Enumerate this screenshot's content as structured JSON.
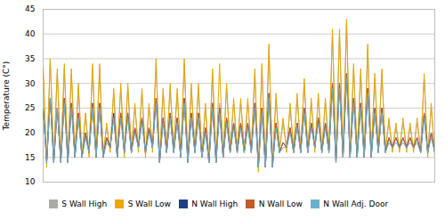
{
  "chart_data": {
    "type": "line",
    "y_label": "Temperature (C°)",
    "ylim": [
      10,
      45
    ],
    "yticks": [
      10,
      15,
      20,
      25,
      30,
      35,
      40,
      45
    ],
    "grid": true,
    "legend": "bottom",
    "tick_labels": "y",
    "series": [
      {
        "name": "S Wall High",
        "color": "#aaaaaa",
        "values": [
          33,
          14,
          35,
          15,
          32,
          15,
          33,
          15,
          32,
          16,
          29,
          15,
          24,
          16,
          33,
          16,
          33,
          16,
          21,
          17,
          28,
          16,
          29,
          16,
          29,
          17,
          25,
          17,
          28,
          16,
          25,
          17,
          34,
          15,
          28,
          17,
          29,
          17,
          28,
          16,
          34,
          15,
          29,
          17,
          29,
          16,
          25,
          15,
          32,
          15,
          26,
          16,
          29,
          17,
          26,
          17,
          26,
          17,
          26,
          17,
          32,
          13,
          33,
          14,
          37,
          14,
          27,
          17,
          22,
          17,
          25,
          17,
          27,
          17,
          30,
          17,
          26,
          17,
          27,
          17,
          26,
          17,
          40,
          15,
          40,
          16,
          42,
          16,
          33,
          16,
          32,
          16,
          37,
          16,
          31,
          17,
          32,
          17,
          22,
          17,
          21,
          17,
          22,
          17,
          21,
          17,
          22,
          17,
          31,
          16,
          25,
          16
        ]
      },
      {
        "name": "S Wall Low",
        "color": "#e8a800",
        "values": [
          33,
          13,
          35,
          14,
          33,
          14,
          34,
          14,
          33,
          15,
          30,
          15,
          24,
          15,
          34,
          15,
          34,
          15,
          22,
          16,
          29,
          15,
          30,
          15,
          30,
          16,
          26,
          16,
          29,
          15,
          26,
          16,
          35,
          14,
          29,
          16,
          30,
          16,
          29,
          15,
          35,
          14,
          30,
          16,
          30,
          15,
          26,
          14,
          33,
          14,
          34,
          15,
          30,
          16,
          27,
          16,
          27,
          16,
          27,
          16,
          33,
          12,
          34,
          13,
          38,
          13,
          28,
          16,
          23,
          16,
          26,
          16,
          28,
          16,
          31,
          16,
          27,
          16,
          28,
          16,
          27,
          16,
          41,
          14,
          41,
          15,
          43,
          15,
          34,
          15,
          33,
          15,
          38,
          15,
          32,
          16,
          33,
          16,
          23,
          16,
          22,
          16,
          23,
          16,
          22,
          16,
          23,
          16,
          32,
          15,
          26,
          15
        ]
      },
      {
        "name": "N Wall High",
        "color": "#1f3d8a",
        "values": [
          25,
          14,
          27,
          14,
          25,
          14,
          27,
          14,
          26,
          15,
          24,
          15,
          20,
          16,
          26,
          15,
          26,
          15,
          19,
          17,
          24,
          15,
          24,
          16,
          24,
          16,
          21,
          17,
          23,
          16,
          21,
          17,
          27,
          14,
          23,
          16,
          24,
          16,
          23,
          15,
          27,
          14,
          24,
          16,
          24,
          15,
          21,
          14,
          26,
          14,
          25,
          15,
          23,
          16,
          22,
          16,
          22,
          16,
          22,
          16,
          26,
          13,
          25,
          13,
          28,
          13,
          22,
          16,
          18,
          17,
          21,
          16,
          22,
          16,
          25,
          16,
          22,
          17,
          23,
          16,
          22,
          16,
          30,
          14,
          30,
          15,
          32,
          15,
          27,
          15,
          26,
          15,
          29,
          15,
          25,
          16,
          25,
          16,
          19,
          17,
          19,
          17,
          19,
          17,
          19,
          17,
          19,
          16,
          24,
          16,
          20,
          16
        ]
      },
      {
        "name": "N Wall Low",
        "color": "#c25a2a",
        "values": [
          25,
          14,
          27,
          14,
          25,
          14,
          27,
          14,
          26,
          15,
          24,
          15,
          20,
          16,
          26,
          15,
          26,
          15,
          19,
          17,
          23,
          15,
          24,
          16,
          24,
          16,
          21,
          17,
          23,
          16,
          21,
          17,
          27,
          14,
          23,
          16,
          24,
          16,
          23,
          15,
          27,
          14,
          24,
          16,
          24,
          15,
          21,
          14,
          26,
          14,
          25,
          15,
          23,
          16,
          22,
          16,
          22,
          16,
          22,
          16,
          26,
          13,
          25,
          13,
          28,
          13,
          22,
          16,
          18,
          17,
          21,
          16,
          22,
          16,
          25,
          16,
          22,
          17,
          23,
          16,
          22,
          16,
          30,
          14,
          30,
          15,
          32,
          15,
          27,
          15,
          26,
          15,
          29,
          15,
          25,
          16,
          25,
          16,
          19,
          17,
          19,
          17,
          19,
          17,
          19,
          17,
          19,
          16,
          24,
          16,
          20,
          16
        ]
      },
      {
        "name": "N Wall Adj. Door",
        "color": "#6ab0cc",
        "values": [
          25,
          14,
          27,
          14,
          25,
          14,
          26,
          14,
          25,
          15,
          23,
          15,
          19,
          16,
          25,
          15,
          25,
          15,
          18,
          17,
          23,
          15,
          23,
          16,
          23,
          16,
          20,
          17,
          22,
          16,
          20,
          17,
          26,
          14,
          22,
          16,
          23,
          16,
          22,
          15,
          26,
          14,
          23,
          16,
          23,
          15,
          20,
          14,
          25,
          14,
          24,
          15,
          22,
          16,
          21,
          16,
          21,
          16,
          21,
          16,
          25,
          13,
          24,
          13,
          27,
          13,
          21,
          16,
          17,
          17,
          20,
          16,
          21,
          16,
          24,
          16,
          21,
          17,
          22,
          16,
          21,
          16,
          29,
          14,
          29,
          15,
          31,
          15,
          26,
          15,
          25,
          15,
          28,
          15,
          24,
          16,
          24,
          16,
          18,
          17,
          18,
          17,
          18,
          17,
          18,
          17,
          18,
          16,
          23,
          16,
          19,
          16
        ]
      }
    ]
  }
}
